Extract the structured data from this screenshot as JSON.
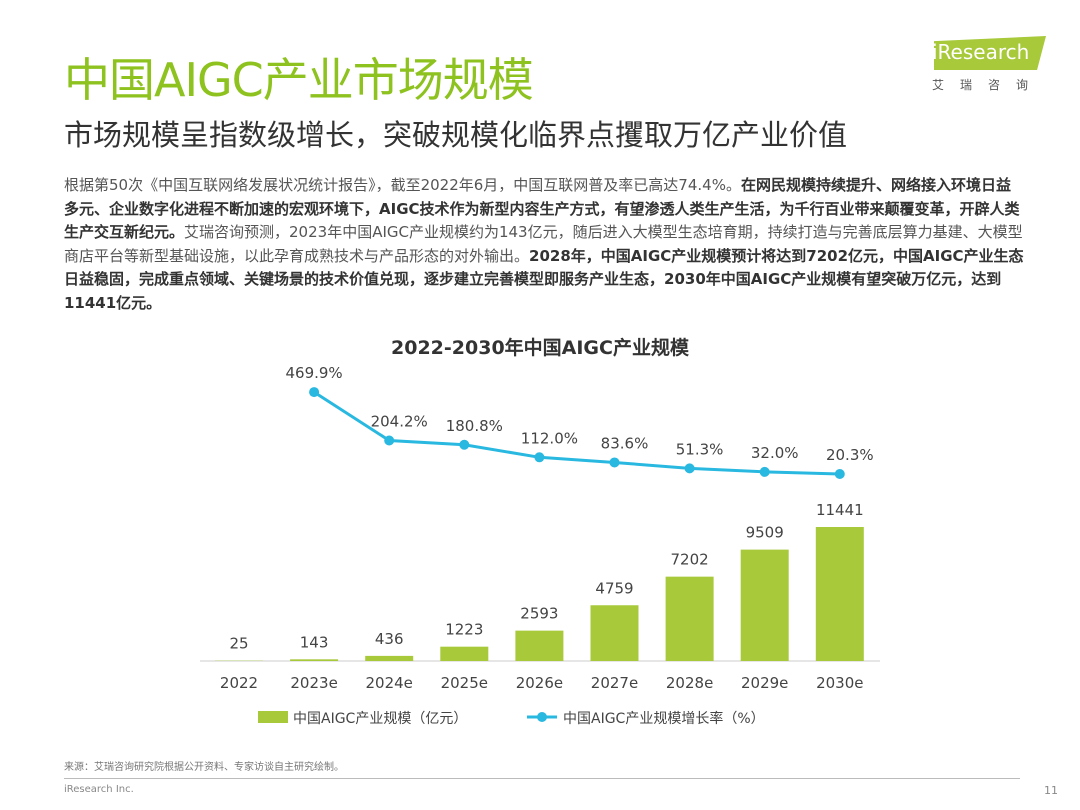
{
  "header": {
    "title": "中国AIGC产业市场规模",
    "subtitle": "市场规模呈指数级增长，突破规模化临界点攫取万亿产业价值"
  },
  "logo": {
    "text": "iResearch",
    "cn": "艾瑞咨询"
  },
  "body": [
    {
      "t": "根据第50次《中国互联网络发展状况统计报告》，截至2022年6月，中国互联网普及率已高达74.4%。",
      "b": false
    },
    {
      "t": "在网民规模持续提升、网络接入环境日益多元、企业数字化进程不断加速的宏观环境下，AIGC技术作为新型内容生产方式，有望渗透人类生产生活，为千行百业带来颠覆变革，开辟人类生产交互新纪元。",
      "b": true
    },
    {
      "t": "艾瑞咨询预测，2023年中国AIGC产业规模约为143亿元，随后进入大模型生态培育期，持续打造与完善底层算力基建、大模型商店平台等新型基础设施，以此孕育成熟技术与产品形态的对外输出。",
      "b": false
    },
    {
      "t": "2028年，中国AIGC产业规模预计将达到7202亿元，中国AIGC产业生态日益稳固，完成重点领域、关键场景的技术价值兑现，逐步建立完善模型即服务产业生态，2030年中国AIGC产业规模有望突破万亿元，达到11441亿元。",
      "b": true
    }
  ],
  "chart_data": {
    "type": "bar+line",
    "title": "2022-2030年中国AIGC产业规模",
    "categories": [
      "2022",
      "2023e",
      "2024e",
      "2025e",
      "2026e",
      "2027e",
      "2028e",
      "2029e",
      "2030e"
    ],
    "series": [
      {
        "name": "中国AIGC产业规模（亿元）",
        "type": "bar",
        "color": "#a7c93a",
        "values": [
          25,
          143,
          436,
          1223,
          2593,
          4759,
          7202,
          9509,
          11441
        ],
        "labels": [
          "25",
          "143",
          "436",
          "1223",
          "2593",
          "4759",
          "7202",
          "9509",
          "11441"
        ]
      },
      {
        "name": "中国AIGC产业规模增长率（%）",
        "type": "line",
        "color": "#29b8e0",
        "values": [
          null,
          469.9,
          204.2,
          180.8,
          112.0,
          83.6,
          51.3,
          32.0,
          20.3
        ],
        "labels": [
          "",
          "469.9%",
          "204.2%",
          "180.8%",
          "112.0%",
          "83.6%",
          "51.3%",
          "32.0%",
          "20.3%"
        ]
      }
    ],
    "legend": "bottom",
    "grid": false
  },
  "footer": {
    "source": "来源：艾瑞咨询研究院根据公开资料、专家访谈自主研究绘制。",
    "copyright": "iResearch Inc.",
    "page": "11"
  }
}
